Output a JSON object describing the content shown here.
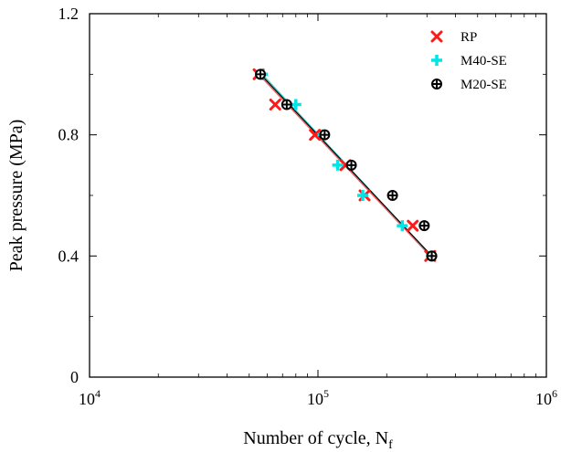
{
  "chart_data": {
    "type": "scatter",
    "xscale": "log",
    "xlim": [
      10000,
      1000000
    ],
    "ylim": [
      0,
      1.2
    ],
    "xlabel_main": "Number of cycle, N",
    "xlabel_sub": "f",
    "ylabel": "Peak pressure (MPa)",
    "x_ticks": [
      {
        "value": 10000,
        "base": "10",
        "exp": "4"
      },
      {
        "value": 100000,
        "base": "10",
        "exp": "5"
      },
      {
        "value": 1000000,
        "base": "10",
        "exp": "6"
      }
    ],
    "y_ticks": [
      {
        "value": 0,
        "label": "0"
      },
      {
        "value": 0.4,
        "label": "0.4"
      },
      {
        "value": 0.8,
        "label": "0.8"
      },
      {
        "value": 1.2,
        "label": "1.2"
      }
    ],
    "legend_position": "top-right",
    "series": [
      {
        "name": "RP",
        "marker": "x",
        "color": "#ff1a1a",
        "line_color": "#ff4d4d",
        "points": [
          [
            55000,
            1.0
          ],
          [
            65000,
            0.9
          ],
          [
            97000,
            0.8
          ],
          [
            132000,
            0.7
          ],
          [
            160000,
            0.6
          ],
          [
            260000,
            0.5
          ],
          [
            310000,
            0.4
          ]
        ],
        "fit": [
          [
            55000,
            1.0
          ],
          [
            310000,
            0.4
          ]
        ]
      },
      {
        "name": "M40-SE",
        "marker": "plus",
        "color": "#00e5e5",
        "line_color": "#22c8c8",
        "points": [
          [
            57000,
            1.0
          ],
          [
            80000,
            0.9
          ],
          [
            105000,
            0.8
          ],
          [
            122000,
            0.7
          ],
          [
            157000,
            0.6
          ],
          [
            234000,
            0.5
          ],
          [
            314000,
            0.4
          ]
        ],
        "fit": [
          [
            57000,
            1.0
          ],
          [
            314000,
            0.4
          ]
        ]
      },
      {
        "name": "M20-SE",
        "marker": "circle-plus",
        "color": "#000000",
        "line_color": "#000000",
        "points": [
          [
            56000,
            1.0
          ],
          [
            73000,
            0.9
          ],
          [
            107000,
            0.8
          ],
          [
            140000,
            0.7
          ],
          [
            212000,
            0.6
          ],
          [
            292000,
            0.5
          ],
          [
            315000,
            0.4
          ]
        ],
        "fit": [
          [
            56000,
            1.0
          ],
          [
            315000,
            0.4
          ]
        ]
      }
    ]
  }
}
